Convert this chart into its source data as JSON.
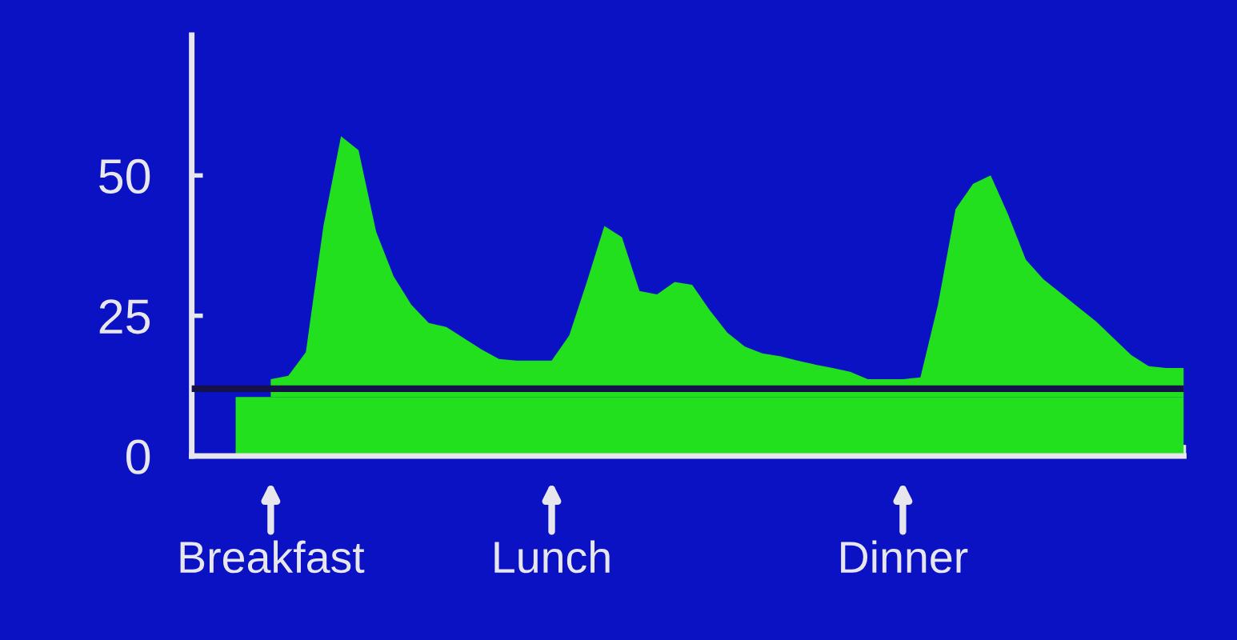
{
  "chart_data": {
    "type": "area",
    "categories": [
      null,
      null,
      "Breakfast",
      null,
      null,
      null,
      null,
      null,
      null,
      null,
      null,
      null,
      null,
      null,
      null,
      null,
      null,
      null,
      "Lunch",
      null,
      null,
      null,
      null,
      null,
      null,
      null,
      null,
      null,
      null,
      null,
      null,
      null,
      null,
      null,
      null,
      null,
      null,
      null,
      "Dinner",
      null,
      null,
      null,
      null,
      null,
      null,
      null,
      null,
      null,
      null,
      null,
      null,
      null,
      null,
      null,
      null
    ],
    "series": [
      {
        "color": "#22e01e",
        "values": [
          10.5,
          10.5,
          10.5,
          10.5,
          10.5,
          10.5,
          10.5,
          10.5,
          10.5,
          10.5,
          10.5,
          10.5,
          10.5,
          10.5,
          10.5,
          10.5,
          10.5,
          10.5,
          10.5,
          10.5,
          10.5,
          10.5,
          10.5,
          10.5,
          10.5,
          10.5,
          10.5,
          10.5,
          10.5,
          10.5,
          10.5,
          10.5,
          10.5,
          10.5,
          10.5,
          10.5,
          10.5,
          10.5,
          10.5,
          10.5,
          10.5,
          10.5,
          10.5,
          10.5,
          10.5,
          10.5,
          10.5,
          10.5,
          10.5,
          10.5,
          10.5,
          10.5,
          10.5,
          10.5,
          10.5
        ]
      },
      {
        "color": "#22e01e",
        "values": [
          null,
          null,
          3.2,
          3.8,
          8,
          30.5,
          46.5,
          44,
          29.5,
          21.5,
          16.5,
          13.2,
          12.5,
          10.5,
          8.5,
          6.8,
          6.5,
          6.5,
          6.5,
          11,
          20.5,
          30.5,
          28.5,
          18.9,
          18.3,
          20.5,
          20,
          15.5,
          11.5,
          9,
          7.8,
          7.3,
          6.5,
          5.8,
          5.2,
          4.5,
          3.2,
          3.2,
          3.2,
          3.5,
          16.5,
          33.5,
          38,
          39.5,
          32.5,
          24.5,
          21,
          18.5,
          16,
          13.5,
          10.5,
          7.5,
          5.5,
          5.2,
          5.2
        ]
      }
    ],
    "stacked": true,
    "ref_lines": [
      {
        "axis": "y",
        "value": 12,
        "color": "#15124a"
      }
    ],
    "ylim": [
      0,
      75
    ],
    "yticks": [
      0,
      25,
      50
    ],
    "grid": false,
    "legend": false
  }
}
